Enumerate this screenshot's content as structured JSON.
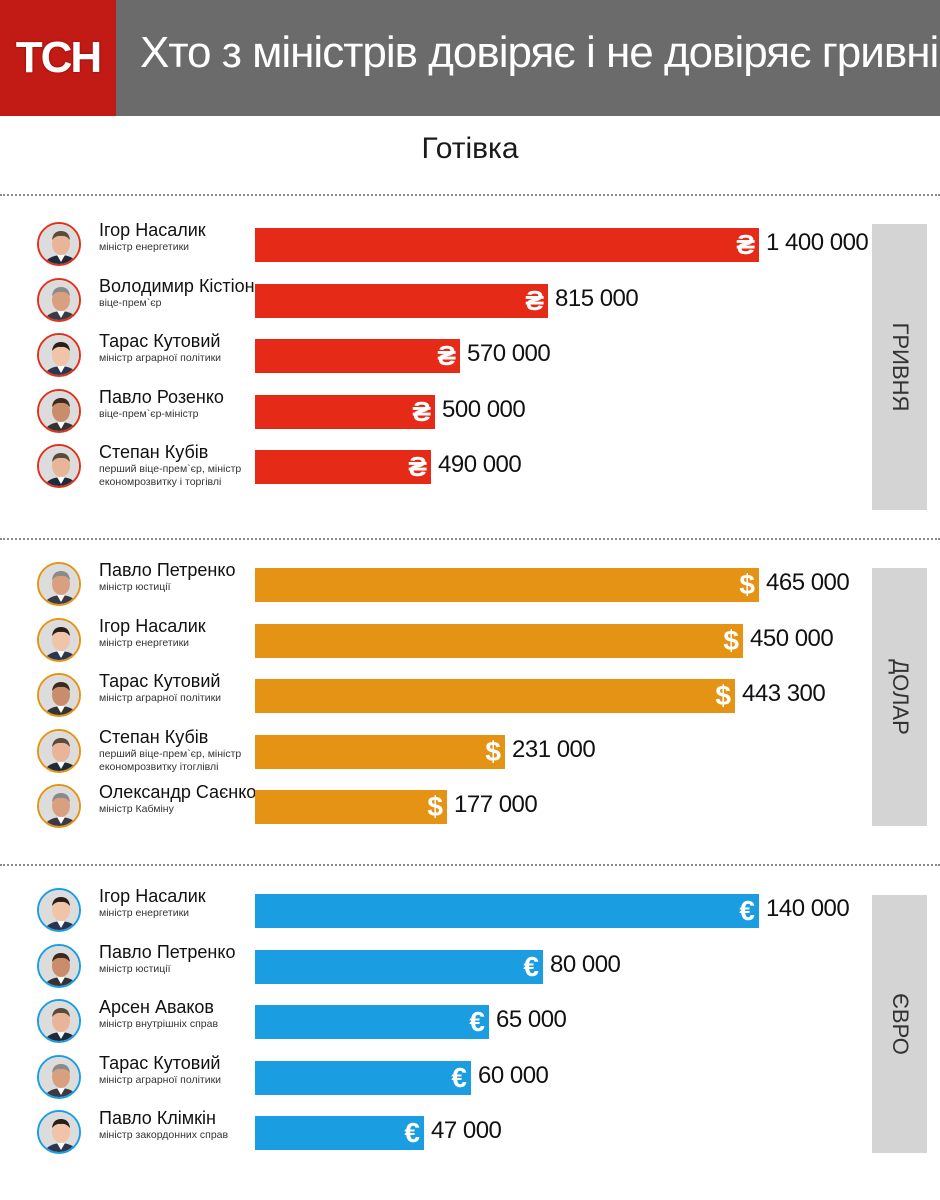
{
  "header": {
    "logo_text": "ТСН",
    "title": "Хто з міністрів довіряє і не довіряє гривні",
    "logo_color": "#c21a14",
    "background_color": "#6b6b6b"
  },
  "section_title": "Готівка",
  "chart_data": [
    {
      "type": "bar",
      "orientation": "horizontal",
      "title": "гривня",
      "currency_symbol": "₴",
      "color": "#e52b17",
      "categories": [
        "Ігор Насалик",
        "Володимир Кістіон",
        "Тарас Кутовий",
        "Павло Розенко",
        "Степан Кубів"
      ],
      "roles": [
        "міністр енергетики",
        "віце-прем`єр",
        "міністр аграрної політики",
        "віце-прем`єр-міністр",
        "перший віце-прем`єр, міністр економрозвитку і торгівлі"
      ],
      "values": [
        1400000,
        815000,
        570000,
        500000,
        490000
      ],
      "labels": [
        "1 400 000",
        "815 000",
        "570 000",
        "500 000",
        "490 000"
      ]
    },
    {
      "type": "bar",
      "orientation": "horizontal",
      "title": "долар",
      "currency_symbol": "$",
      "color": "#e59314",
      "categories": [
        "Павло Петренко",
        "Ігор Насалик",
        "Тарас Кутовий",
        "Степан Кубів",
        "Олександр Саєнко"
      ],
      "roles": [
        "міністр юстиції",
        "міністр енергетики",
        "міністр аграрної політики",
        "перший віце-прем`єр, міністр економрозвитку ітоглівлі",
        "міністр Кабміну"
      ],
      "values": [
        465000,
        450000,
        443300,
        231000,
        177000
      ],
      "labels": [
        "465 000",
        "450 000",
        "443 300",
        "231 000",
        "177 000"
      ]
    },
    {
      "type": "bar",
      "orientation": "horizontal",
      "title": "євро",
      "currency_symbol": "€",
      "color": "#1b9de2",
      "categories": [
        "Ігор Насалик",
        "Павло Петренко",
        "Арсен Аваков",
        "Тарас Кутовий",
        "Павло Клімкін"
      ],
      "roles": [
        "міністр енергетики",
        "міністр юстиції",
        "міністр внутрішніх справ",
        "міністр аграрної політики",
        "міністр закордонних справ"
      ],
      "values": [
        140000,
        80000,
        65000,
        60000,
        47000
      ],
      "labels": [
        "140 000",
        "80 000",
        "65 000",
        "60 000",
        "47 000"
      ]
    }
  ]
}
